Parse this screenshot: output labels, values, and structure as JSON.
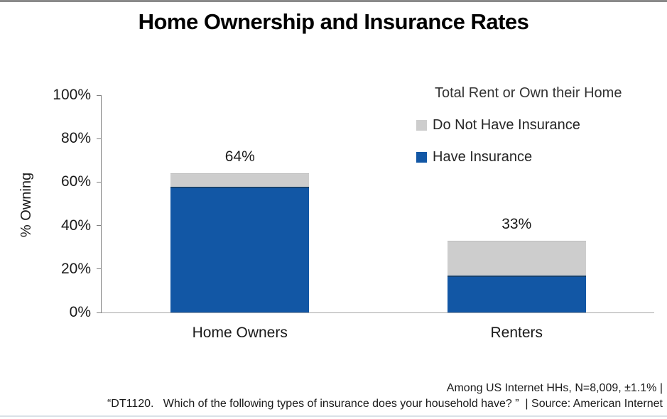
{
  "page": {
    "title": "Home Ownership and Insurance Rates"
  },
  "chart_data": {
    "type": "bar",
    "stacked": true,
    "title": "Home Ownership and Insurance Rates",
    "categories": [
      "Home Owners",
      "Renters"
    ],
    "series": [
      {
        "name": "Have Insurance",
        "color": "#1257a5",
        "values": [
          58,
          17
        ]
      },
      {
        "name": "Do Not Have Insurance",
        "color": "#cdcdcd",
        "values": [
          6,
          16
        ]
      }
    ],
    "totals": [
      64,
      33
    ],
    "total_labels": [
      "64%",
      "33%"
    ],
    "xlabel": "",
    "ylabel": "% Owning",
    "ylim": [
      0,
      100
    ],
    "yticks": [
      "0%",
      "20%",
      "40%",
      "60%",
      "80%",
      "100%"
    ],
    "grid": false,
    "legend_position": "top-right",
    "legend_title": "Total Rent or Own their Home"
  },
  "legend": {
    "title": "Total Rent or Own their Home",
    "items": [
      {
        "label": "Do Not Have Insurance",
        "color": "#cdcdcd"
      },
      {
        "label": "Have Insurance",
        "color": "#1257a5"
      }
    ]
  },
  "footer": {
    "line1": "Among US Internet HHs, N=8,009, ±1.1% |",
    "line2": "“DT1120.   Which of the following types of insurance does your household have? ”  | Source: American Internet"
  }
}
